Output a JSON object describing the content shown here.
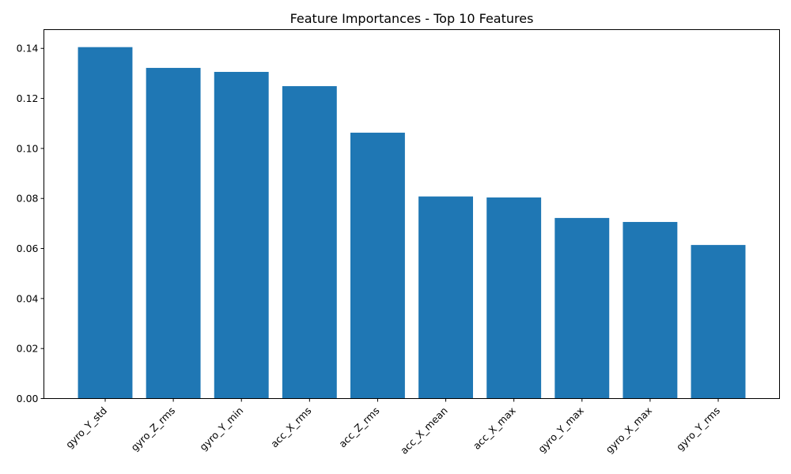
{
  "chart_data": {
    "type": "bar",
    "title": "Feature Importances - Top 10 Features",
    "xlabel": "",
    "ylabel": "",
    "categories": [
      "gyro_Y_std",
      "gyro_Z_rms",
      "gyro_Y_min",
      "acc_X_rms",
      "acc_Z_rms",
      "acc_X_mean",
      "acc_X_max",
      "gyro_Y_max",
      "gyro_X_max",
      "gyro_Y_rms"
    ],
    "values": [
      0.1405,
      0.1322,
      0.1306,
      0.1249,
      0.1063,
      0.0808,
      0.0804,
      0.0722,
      0.0706,
      0.0614
    ],
    "ylim": [
      0,
      0.1475
    ],
    "yticks": [
      0.0,
      0.02,
      0.04,
      0.06,
      0.08,
      0.1,
      0.12,
      0.14
    ],
    "ytick_labels": [
      "0.00",
      "0.02",
      "0.04",
      "0.06",
      "0.08",
      "0.10",
      "0.12",
      "0.14"
    ],
    "bar_color": "#1f77b4",
    "grid": false,
    "legend": "none"
  }
}
